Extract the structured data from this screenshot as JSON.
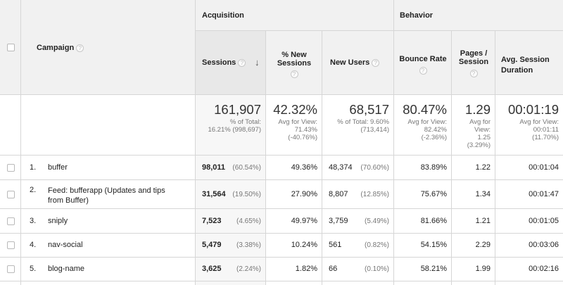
{
  "header": {
    "campaign": "Campaign",
    "acquisition": "Acquisition",
    "behavior": "Behavior",
    "columns": {
      "sessions": "Sessions",
      "pct_new_sessions_1": "% New",
      "pct_new_sessions_2": "Sessions",
      "new_users": "New Users",
      "bounce_rate": "Bounce Rate",
      "pages_session_1": "Pages /",
      "pages_session_2": "Session",
      "avg_duration_1": "Avg. Session",
      "avg_duration_2": "Duration"
    },
    "help_glyph": "?",
    "sort_glyph": "↓"
  },
  "totals": {
    "sessions": "161,907",
    "sessions_sub1": "% of Total:",
    "sessions_sub2": "16.21% (998,697)",
    "pct_new": "42.32%",
    "pct_new_sub1": "Avg for View:",
    "pct_new_sub2": "71.43%",
    "pct_new_sub3": "(-40.76%)",
    "new_users": "68,517",
    "new_users_sub1": "% of Total: 9.60%",
    "new_users_sub2": "(713,414)",
    "bounce": "80.47%",
    "bounce_sub1": "Avg for View:",
    "bounce_sub2": "82.42%",
    "bounce_sub3": "(-2.36%)",
    "pages": "1.29",
    "pages_sub1": "Avg for",
    "pages_sub2": "View:",
    "pages_sub3": "1.25",
    "pages_sub4": "(3.29%)",
    "duration": "00:01:19",
    "duration_sub1": "Avg for View:",
    "duration_sub2": "00:01:11",
    "duration_sub3": "(11.70%)"
  },
  "rows": [
    {
      "index": "1.",
      "campaign": "buffer",
      "campaign2": "",
      "sessions": "98,011",
      "sessions_pct": "(60.54%)",
      "pct_new": "49.36%",
      "new_users": "48,374",
      "new_users_pct": "(70.60%)",
      "bounce": "83.89%",
      "pages": "1.22",
      "duration": "00:01:04"
    },
    {
      "index": "2.",
      "campaign": "Feed: bufferapp (Updates and tips",
      "campaign2": "from Buffer)",
      "sessions": "31,564",
      "sessions_pct": "(19.50%)",
      "pct_new": "27.90%",
      "new_users": "8,807",
      "new_users_pct": "(12.85%)",
      "bounce": "75.67%",
      "pages": "1.34",
      "duration": "00:01:47"
    },
    {
      "index": "3.",
      "campaign": "sniply",
      "campaign2": "",
      "sessions": "7,523",
      "sessions_pct": "(4.65%)",
      "pct_new": "49.97%",
      "new_users": "3,759",
      "new_users_pct": "(5.49%)",
      "bounce": "81.66%",
      "pages": "1.21",
      "duration": "00:01:05"
    },
    {
      "index": "4.",
      "campaign": "nav-social",
      "campaign2": "",
      "sessions": "5,479",
      "sessions_pct": "(3.38%)",
      "pct_new": "10.24%",
      "new_users": "561",
      "new_users_pct": "(0.82%)",
      "bounce": "54.15%",
      "pages": "2.29",
      "duration": "00:03:06"
    },
    {
      "index": "5.",
      "campaign": "blog-name",
      "campaign2": "",
      "sessions": "3,625",
      "sessions_pct": "(2.24%)",
      "pct_new": "1.82%",
      "new_users": "66",
      "new_users_pct": "(0.10%)",
      "bounce": "58.21%",
      "pages": "1.99",
      "duration": "00:02:16"
    }
  ]
}
